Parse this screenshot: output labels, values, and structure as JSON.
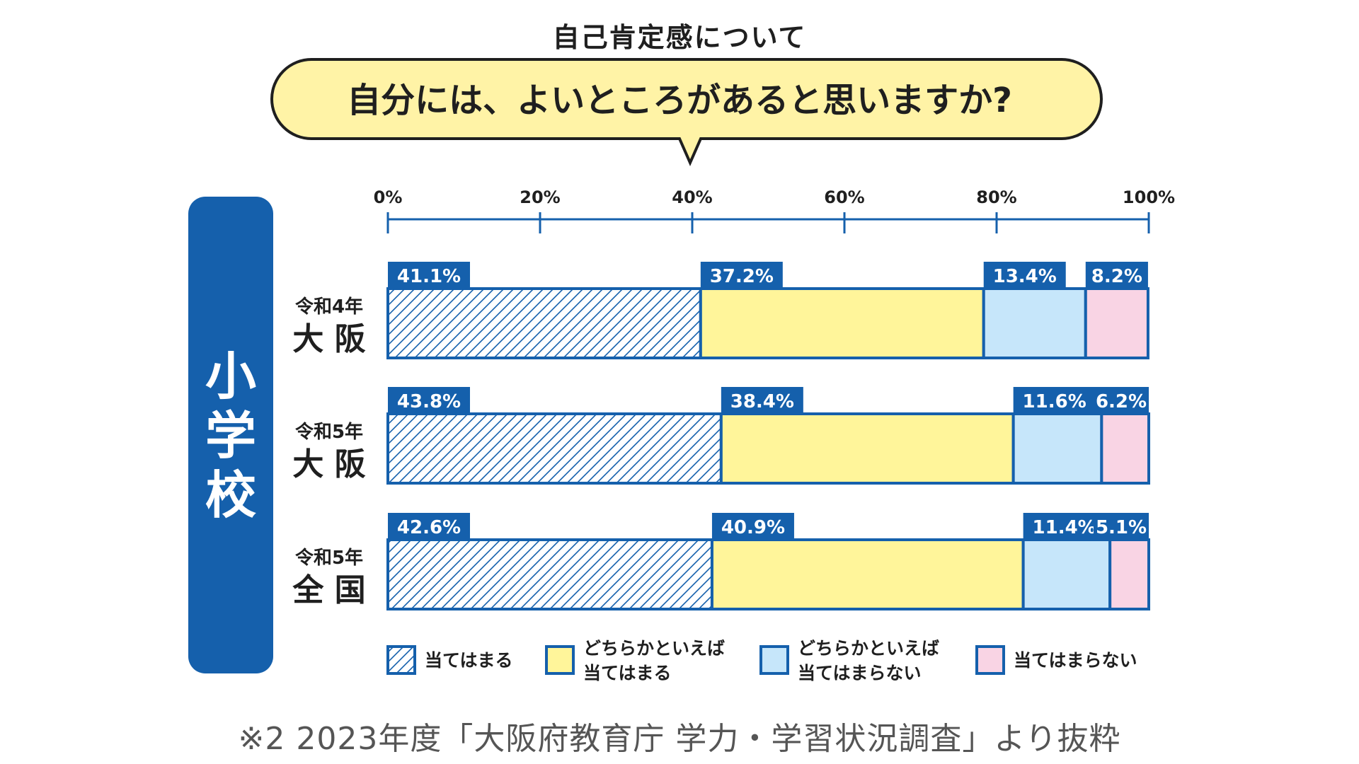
{
  "subtitle": "自己肯定感について",
  "colors": {
    "blue": "#1560AC",
    "question_fill": "#FFF3A6",
    "segments": [
      "#FFFFFF",
      "#FFF59A",
      "#C6E6FA",
      "#F9D4E4"
    ]
  },
  "chart_data": {
    "type": "bar",
    "orientation": "horizontal",
    "stacked": true,
    "title": "自分には、よいところがあると思いますか?",
    "group_label": "小学校",
    "xlim": [
      0,
      100
    ],
    "xticks": [
      "0%",
      "20%",
      "40%",
      "60%",
      "80%",
      "100%"
    ],
    "categories": [
      {
        "line1": "令和4年",
        "line2": "大 阪"
      },
      {
        "line1": "令和5年",
        "line2": "大 阪"
      },
      {
        "line1": "令和5年",
        "line2": "全 国"
      }
    ],
    "series": [
      {
        "name": "当てはまる",
        "legend_lines": [
          "当てはまる"
        ],
        "pattern": "hatch",
        "values": [
          41.1,
          43.8,
          42.6
        ]
      },
      {
        "name": "どちらかといえば当てはまる",
        "legend_lines": [
          "どちらかといえば",
          "当てはまる"
        ],
        "pattern": "solid",
        "values": [
          37.2,
          38.4,
          40.9
        ]
      },
      {
        "name": "どちらかといえば当てはまらない",
        "legend_lines": [
          "どちらかといえば",
          "当てはまらない"
        ],
        "pattern": "solid",
        "values": [
          13.4,
          11.6,
          11.4
        ]
      },
      {
        "name": "当てはまらない",
        "legend_lines": [
          "当てはまらない"
        ],
        "pattern": "solid",
        "values": [
          8.2,
          6.2,
          5.1
        ]
      }
    ]
  },
  "source": "※2 2023年度「大阪府教育庁 学力・学習状況調査」より抜粋"
}
